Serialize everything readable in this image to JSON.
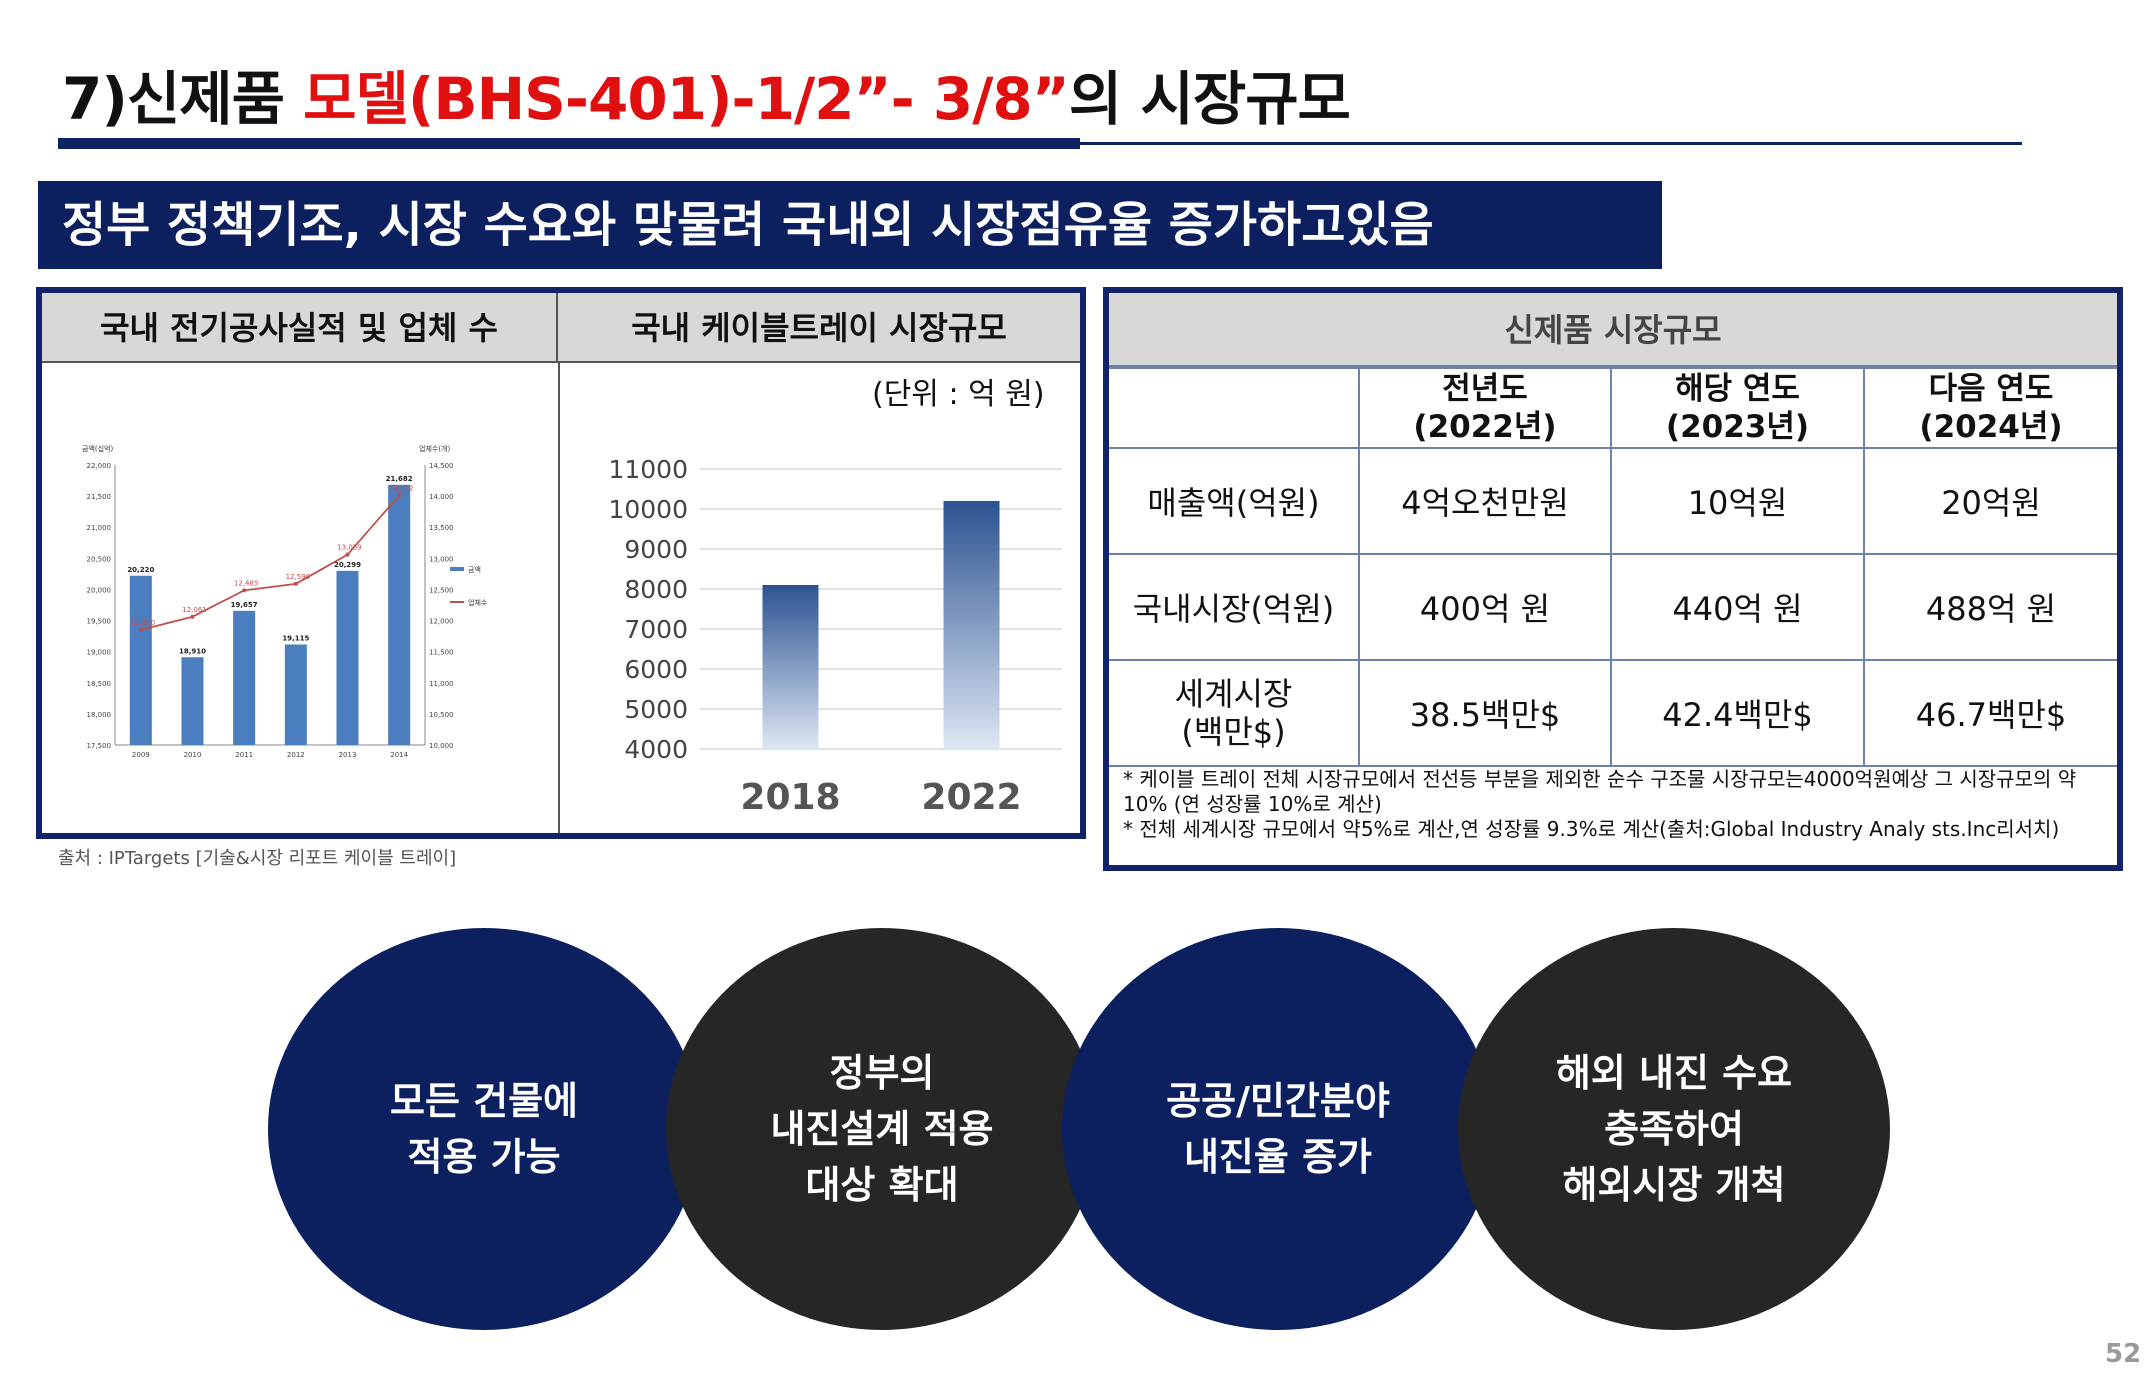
{
  "title": {
    "prefix": "7)신제품 ",
    "highlight": "모델(BHS-401)-1/2”- 3/8”",
    "suffix": "의 시장규모"
  },
  "banner": "정부 정책기조, 시장 수요와 맞물려 국내외 시장점유율 증가하고있음",
  "left_panel": {
    "header_1": "국내 전기공사실적 및 업체 수",
    "header_2": "국내 케이블트레이 시장규모",
    "unit": "(단위 : 억 원)",
    "source": "출처 : IPTargets [기술&시장 리포트 케이블 트레이]"
  },
  "chart_data": [
    {
      "type": "bar",
      "title": "",
      "categories": [
        "2009",
        "2010",
        "2011",
        "2012",
        "2013",
        "2014"
      ],
      "series": [
        {
          "name": "금액",
          "values": [
            20220,
            18910,
            19657,
            19115,
            20299,
            21682
          ],
          "type": "bar"
        },
        {
          "name": "업체수",
          "values": [
            11850,
            12061,
            12485,
            12590,
            13059,
            14012
          ],
          "type": "line",
          "axis": "right"
        }
      ],
      "y_left_label": "금액(십억)",
      "y_right_label": "업체수(개)",
      "ylim_left": [
        17500,
        22000
      ],
      "ylim_right": [
        10000,
        14500
      ],
      "y_left_ticks": [
        "22,000",
        "21,500",
        "21,000",
        "20,500",
        "20,000",
        "19,500",
        "19,000",
        "18,500",
        "18,000",
        "17,500"
      ],
      "y_right_ticks": [
        "14,500",
        "14,000",
        "13,500",
        "13,000",
        "12,500",
        "12,000",
        "11,500",
        "11,000",
        "10,500",
        "10,000"
      ],
      "bar_labels": [
        "20,220",
        "18,910",
        "19,657",
        "19,115",
        "20,299",
        "21,682"
      ],
      "line_labels": [
        "11,850",
        "12,061",
        "12,485",
        "12,590",
        "13,059",
        "14,012"
      ],
      "colors": {
        "bar": "#4a7ebf",
        "line": "#c0504d"
      },
      "legend_position": "right"
    },
    {
      "type": "bar",
      "title": "",
      "categories": [
        "2018",
        "2022"
      ],
      "values": [
        8100,
        10200
      ],
      "ylim": [
        4000,
        11000
      ],
      "y_ticks": [
        "11000",
        "10000",
        "9000",
        "8000",
        "7000",
        "6000",
        "5000",
        "4000"
      ],
      "grid": true,
      "bar_color_top": "#2c5392",
      "bar_color_bottom": "#dde6f3"
    }
  ],
  "right_panel": {
    "header": "신제품 시장규모",
    "columns": [
      {
        "line1": "전년도",
        "line2": "(2022년)"
      },
      {
        "line1": "해당 연도",
        "line2": "(2023년)"
      },
      {
        "line1": "다음 연도",
        "line2": "(2024년)"
      }
    ],
    "rows": [
      {
        "label_1": "매출액(억원)",
        "label_2": "",
        "values": [
          "4억오천만원",
          "10억원",
          "20억원"
        ]
      },
      {
        "label_1": "국내시장(억원)",
        "label_2": "",
        "values": [
          "400억 원",
          "440억 원",
          "488억 원"
        ]
      },
      {
        "label_1": "세계시장",
        "label_2": "(백만$)",
        "values": [
          "38.5백만$",
          "42.4백만$",
          "46.7백만$"
        ]
      }
    ],
    "note_1": "* 케이블 트레이 전체 시장규모에서 전선등 부분을 제외한 순수 구조물 시장규모는4000억원예상 그 시장규모의 약10% (연 성장률 10%로 계산)",
    "note_2": "* 전체 세계시장 규모에서 약5%로 계산,연 성장률 9.3%로 계산(출처:Global Industry Analy sts.Inc리서치)"
  },
  "circles": [
    {
      "text": "모든 건물에\n적용 가능",
      "color": "#0c1f5e"
    },
    {
      "text": "정부의\n내진설계 적용\n대상 확대",
      "color": "#262626"
    },
    {
      "text": "공공/민간분야\n내진율 증가",
      "color": "#0c1f5e"
    },
    {
      "text": "해외 내진 수요\n충족하여\n해외시장 개척",
      "color": "#262626"
    }
  ],
  "page_number": "52"
}
